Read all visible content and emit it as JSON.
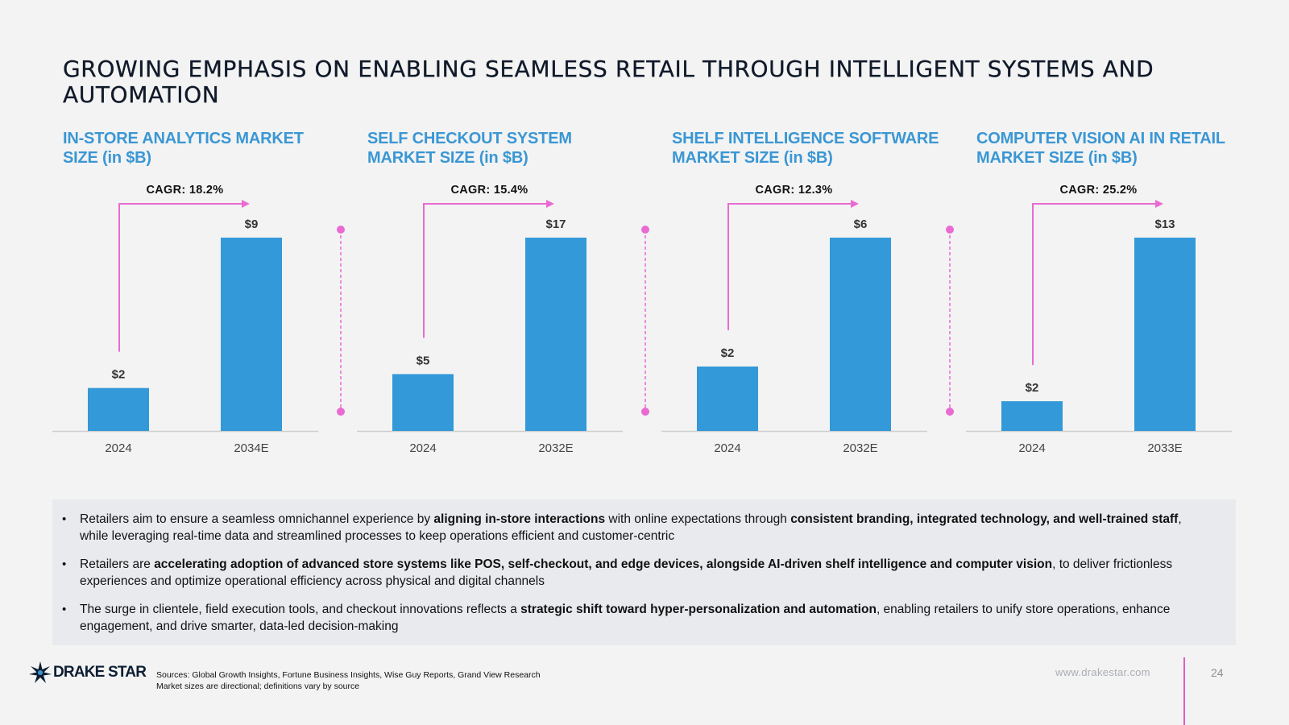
{
  "page": {
    "title": "GROWING EMPHASIS ON ENABLING SEAMLESS RETAIL THROUGH INTELLIGENT SYSTEMS AND AUTOMATION",
    "accent_color": "#3a97d4",
    "arrow_color": "#e96bd2",
    "bar_color": "#3399d8"
  },
  "chart_data": [
    {
      "type": "bar",
      "title": "IN-STORE ANALYTICS MARKET SIZE (in $B)",
      "categories": [
        "2024",
        "2034E"
      ],
      "values": [
        2,
        9
      ],
      "value_labels": [
        "$2",
        "$9"
      ],
      "cagr_label": "CAGR: 18.2%",
      "ylim": [
        0,
        9
      ]
    },
    {
      "type": "bar",
      "title": "SELF CHECKOUT SYSTEM MARKET SIZE (in $B)",
      "categories": [
        "2024",
        "2032E"
      ],
      "values": [
        5,
        17
      ],
      "value_labels": [
        "$5",
        "$17"
      ],
      "cagr_label": "CAGR: 15.4%",
      "ylim": [
        0,
        17
      ]
    },
    {
      "type": "bar",
      "title": "SHELF INTELLIGENCE SOFTWARE MARKET SIZE (in $B)",
      "categories": [
        "2024",
        "2032E"
      ],
      "values": [
        2,
        6
      ],
      "value_labels": [
        "$2",
        "$6"
      ],
      "cagr_label": "CAGR: 12.3%",
      "ylim": [
        0,
        6
      ]
    },
    {
      "type": "bar",
      "title": "COMPUTER VISION AI IN RETAIL MARKET SIZE (in $B)",
      "categories": [
        "2024",
        "2033E"
      ],
      "values": [
        2,
        13
      ],
      "value_labels": [
        "$2",
        "$13"
      ],
      "cagr_label": "CAGR: 25.2%",
      "ylim": [
        0,
        13
      ]
    }
  ],
  "bullets": [
    [
      {
        "text": "Retailers aim to ensure a seamless omnichannel experience by ",
        "bold": false
      },
      {
        "text": "aligning in-store interactions",
        "bold": true
      },
      {
        "text": " with online expectations through ",
        "bold": false
      },
      {
        "text": "consistent branding, integrated technology, and well-trained staff",
        "bold": true
      },
      {
        "text": ", while leveraging real-time data and streamlined processes to keep operations efficient and customer-centric",
        "bold": false
      }
    ],
    [
      {
        "text": "Retailers are ",
        "bold": false
      },
      {
        "text": "accelerating adoption of advanced store systems like POS, self-checkout, and edge devices, alongside AI-driven shelf intelligence and computer vision",
        "bold": true
      },
      {
        "text": ", to deliver frictionless experiences and optimize operational efficiency across physical and digital channels",
        "bold": false
      }
    ],
    [
      {
        "text": "The surge in clientele, field execution tools, and checkout innovations reflects a ",
        "bold": false
      },
      {
        "text": "strategic shift toward hyper-personalization and automation",
        "bold": true
      },
      {
        "text": ", enabling retailers to unify store operations, enhance engagement, and drive smarter, data-led decision-making",
        "bold": false
      }
    ]
  ],
  "footer": {
    "logo_text": "DRAKE STAR",
    "sources_line1": "Sources: Global Growth Insights, Fortune Business Insights, Wise Guy Reports, Grand View Research",
    "sources_line2": "Market sizes are directional; definitions vary by source",
    "url": "www.drakestar.com",
    "page_number": "24"
  }
}
